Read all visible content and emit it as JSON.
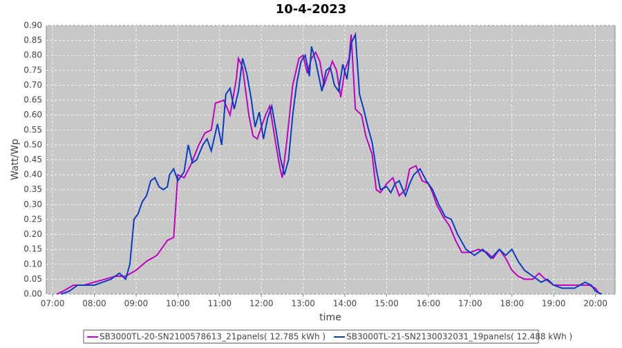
{
  "chart_data": {
    "type": "line",
    "title": "10-4-2023",
    "x_label": "time",
    "y_label": "Watt/Wp",
    "xlim": [
      6.85,
      20.47
    ],
    "ylim": [
      0,
      0.9
    ],
    "grid": true,
    "legend": "bottom",
    "xticks": [
      {
        "value": 7,
        "label": "07:00"
      },
      {
        "value": 8,
        "label": "08:00"
      },
      {
        "value": 9,
        "label": "09:00"
      },
      {
        "value": 10,
        "label": "10:00"
      },
      {
        "value": 11,
        "label": "11:00"
      },
      {
        "value": 12,
        "label": "12:00"
      },
      {
        "value": 13,
        "label": "13:00"
      },
      {
        "value": 14,
        "label": "14:00"
      },
      {
        "value": 15,
        "label": "15:00"
      },
      {
        "value": 16,
        "label": "16:00"
      },
      {
        "value": 17,
        "label": "17:00"
      },
      {
        "value": 18,
        "label": "18:00"
      },
      {
        "value": 19,
        "label": "19:00"
      },
      {
        "value": 20,
        "label": "20:00"
      }
    ],
    "yticks": [
      {
        "value": 0,
        "label": "0.00"
      },
      0.05,
      {
        "value": 0.1,
        "label": "0.10"
      },
      0.15,
      {
        "value": 0.2,
        "label": "0.20"
      },
      0.25,
      {
        "value": 0.3,
        "label": "0.30"
      },
      0.35,
      {
        "value": 0.4,
        "label": "0.40"
      },
      0.45,
      {
        "value": 0.5,
        "label": "0.50"
      },
      0.55,
      {
        "value": 0.6,
        "label": "0.60"
      },
      0.65,
      {
        "value": 0.7,
        "label": "0.70"
      },
      0.75,
      {
        "value": 0.8,
        "label": "0.80"
      },
      0.85,
      {
        "value": 0.9,
        "label": "0.90"
      }
    ],
    "series": [
      {
        "name": "SB3000TL-20-SN2100578613_21panels( 12.785 kWh )",
        "color": "#c000c0",
        "x": [
          7.1,
          7.25,
          7.5,
          7.75,
          8.0,
          8.25,
          8.5,
          8.75,
          9.0,
          9.25,
          9.5,
          9.75,
          9.9,
          10.0,
          10.15,
          10.3,
          10.5,
          10.65,
          10.8,
          10.9,
          11.1,
          11.25,
          11.4,
          11.45,
          11.55,
          11.7,
          11.8,
          11.9,
          12.1,
          12.2,
          12.35,
          12.45,
          12.5,
          12.6,
          12.75,
          12.9,
          13.0,
          13.1,
          13.2,
          13.3,
          13.4,
          13.5,
          13.6,
          13.7,
          13.8,
          13.9,
          14.0,
          14.1,
          14.15,
          14.25,
          14.4,
          14.5,
          14.65,
          14.75,
          14.85,
          15.0,
          15.15,
          15.3,
          15.45,
          15.55,
          15.7,
          15.85,
          16.0,
          16.1,
          16.2,
          16.35,
          16.5,
          16.65,
          16.8,
          17.0,
          17.2,
          17.4,
          17.55,
          17.7,
          17.85,
          18.0,
          18.15,
          18.3,
          18.5,
          18.65,
          18.8,
          19.0,
          19.2,
          19.4,
          19.6,
          19.85,
          20.0,
          20.1
        ],
        "values": [
          0,
          0.01,
          0.03,
          0.03,
          0.04,
          0.05,
          0.06,
          0.06,
          0.08,
          0.11,
          0.13,
          0.18,
          0.19,
          0.4,
          0.39,
          0.43,
          0.5,
          0.54,
          0.55,
          0.64,
          0.65,
          0.6,
          0.72,
          0.79,
          0.76,
          0.6,
          0.53,
          0.52,
          0.6,
          0.63,
          0.5,
          0.42,
          0.39,
          0.5,
          0.7,
          0.79,
          0.8,
          0.74,
          0.79,
          0.81,
          0.78,
          0.7,
          0.74,
          0.78,
          0.75,
          0.66,
          0.75,
          0.79,
          0.87,
          0.62,
          0.6,
          0.53,
          0.47,
          0.35,
          0.34,
          0.37,
          0.39,
          0.33,
          0.35,
          0.42,
          0.43,
          0.38,
          0.37,
          0.34,
          0.3,
          0.26,
          0.23,
          0.18,
          0.14,
          0.14,
          0.15,
          0.14,
          0.12,
          0.15,
          0.12,
          0.08,
          0.06,
          0.05,
          0.05,
          0.07,
          0.05,
          0.03,
          0.03,
          0.03,
          0.03,
          0.03,
          0.02,
          0
        ]
      },
      {
        "name": "SB3000TL-21-SN2130032031_19panels( 12.488 kWh )",
        "color": "#0a3cc0",
        "x": [
          7.2,
          7.4,
          7.6,
          7.8,
          8.0,
          8.2,
          8.4,
          8.6,
          8.75,
          8.85,
          8.95,
          9.05,
          9.15,
          9.25,
          9.35,
          9.45,
          9.55,
          9.65,
          9.75,
          9.8,
          9.9,
          10.0,
          10.15,
          10.25,
          10.35,
          10.45,
          10.6,
          10.7,
          10.8,
          10.95,
          11.05,
          11.15,
          11.25,
          11.35,
          11.45,
          11.55,
          11.65,
          11.75,
          11.85,
          11.95,
          12.05,
          12.15,
          12.25,
          12.35,
          12.45,
          12.55,
          12.65,
          12.75,
          12.85,
          12.95,
          13.05,
          13.15,
          13.2,
          13.3,
          13.45,
          13.55,
          13.65,
          13.75,
          13.85,
          13.95,
          14.05,
          14.15,
          14.25,
          14.35,
          14.45,
          14.55,
          14.65,
          14.75,
          14.85,
          15.0,
          15.1,
          15.2,
          15.3,
          15.45,
          15.55,
          15.65,
          15.8,
          15.95,
          16.1,
          16.25,
          16.4,
          16.55,
          16.7,
          16.9,
          17.1,
          17.3,
          17.5,
          17.7,
          17.85,
          18.0,
          18.15,
          18.3,
          18.5,
          18.7,
          18.85,
          19.0,
          19.2,
          19.5,
          19.75,
          19.9,
          20.0,
          20.15
        ],
        "values": [
          0,
          0.01,
          0.03,
          0.03,
          0.03,
          0.04,
          0.05,
          0.07,
          0.05,
          0.1,
          0.25,
          0.27,
          0.31,
          0.33,
          0.38,
          0.39,
          0.36,
          0.35,
          0.36,
          0.4,
          0.42,
          0.38,
          0.41,
          0.5,
          0.44,
          0.45,
          0.5,
          0.52,
          0.48,
          0.57,
          0.5,
          0.67,
          0.69,
          0.62,
          0.68,
          0.79,
          0.74,
          0.66,
          0.56,
          0.61,
          0.52,
          0.59,
          0.63,
          0.55,
          0.46,
          0.4,
          0.45,
          0.6,
          0.71,
          0.78,
          0.8,
          0.73,
          0.83,
          0.78,
          0.68,
          0.75,
          0.76,
          0.7,
          0.68,
          0.77,
          0.72,
          0.84,
          0.87,
          0.67,
          0.62,
          0.56,
          0.51,
          0.42,
          0.35,
          0.36,
          0.34,
          0.37,
          0.38,
          0.33,
          0.37,
          0.4,
          0.42,
          0.38,
          0.35,
          0.3,
          0.26,
          0.25,
          0.2,
          0.15,
          0.13,
          0.15,
          0.12,
          0.15,
          0.13,
          0.15,
          0.11,
          0.08,
          0.06,
          0.04,
          0.05,
          0.03,
          0.02,
          0.02,
          0.04,
          0.03,
          0.01,
          0
        ]
      }
    ]
  }
}
